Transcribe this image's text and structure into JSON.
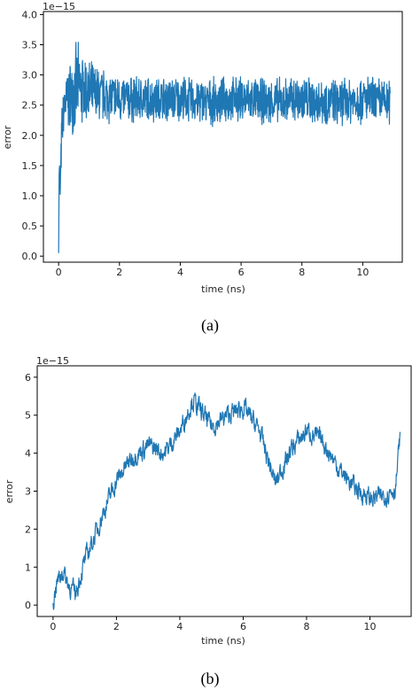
{
  "chart_data": [
    {
      "id": "a",
      "type": "line",
      "caption": "(a)",
      "xlabel": "time (ns)",
      "ylabel": "error",
      "offset_text": "1e−15",
      "xlim": [
        -0.5,
        11.3
      ],
      "ylim": [
        -0.1,
        4.05
      ],
      "xticks": [
        0,
        2,
        4,
        6,
        8,
        10
      ],
      "yticks": [
        0.0,
        0.5,
        1.0,
        1.5,
        2.0,
        2.5,
        3.0,
        3.5,
        4.0
      ],
      "ytick_labels": [
        "0.0",
        "0.5",
        "1.0",
        "1.5",
        "2.0",
        "2.5",
        "3.0",
        "3.5",
        "4.0"
      ],
      "grid": false,
      "color": "#1f77b4",
      "series": [
        {
          "x": [
            0,
            0.02,
            0.05,
            0.08,
            0.1,
            0.15,
            0.2,
            0.3,
            0.4,
            0.5,
            0.6,
            0.8,
            1.0,
            1.5,
            2.0,
            3.0,
            4.0,
            5.0,
            6.0,
            7.0,
            8.0,
            9.0,
            10.0,
            10.9
          ],
          "y": [
            0.05,
            1.6,
            1.0,
            1.6,
            2.0,
            2.3,
            2.5,
            2.6,
            2.65,
            2.75,
            2.8,
            2.75,
            2.7,
            2.65,
            2.6,
            2.6,
            2.6,
            2.55,
            2.6,
            2.55,
            2.6,
            2.55,
            2.6,
            2.55
          ],
          "noise": [
            0,
            0.3,
            0.3,
            0.4,
            0.5,
            0.5,
            0.5,
            0.6,
            0.7,
            0.75,
            0.8,
            0.7,
            0.6,
            0.5,
            0.45,
            0.42,
            0.42,
            0.42,
            0.42,
            0.42,
            0.45,
            0.42,
            0.45,
            0.42
          ]
        }
      ]
    },
    {
      "id": "b",
      "type": "line",
      "caption": "(b)",
      "xlabel": "time (ns)",
      "ylabel": "error",
      "offset_text": "1e−15",
      "xlim": [
        -0.5,
        11.3
      ],
      "ylim": [
        -0.3,
        6.3
      ],
      "xticks": [
        0,
        2,
        4,
        6,
        8,
        10
      ],
      "yticks": [
        0,
        1,
        2,
        3,
        4,
        5,
        6
      ],
      "ytick_labels": [
        "0",
        "1",
        "2",
        "3",
        "4",
        "5",
        "6"
      ],
      "grid": false,
      "color": "#1f77b4",
      "series": [
        {
          "x": [
            0,
            0.1,
            0.3,
            0.5,
            0.7,
            1.0,
            1.3,
            1.6,
            2.0,
            2.5,
            3.0,
            3.5,
            4.0,
            4.4,
            5.0,
            5.5,
            6.0,
            6.5,
            7.0,
            7.5,
            8.0,
            8.5,
            9.0,
            9.5,
            10.0,
            10.5,
            10.8,
            10.95
          ],
          "y": [
            0.1,
            0.6,
            0.9,
            0.5,
            0.3,
            1.2,
            1.8,
            2.5,
            3.3,
            3.9,
            4.2,
            4.0,
            4.6,
            5.4,
            4.7,
            5.0,
            5.2,
            4.6,
            3.2,
            4.1,
            4.6,
            4.3,
            3.6,
            3.1,
            2.8,
            2.9,
            3.1,
            4.6
          ]
        }
      ]
    }
  ],
  "captions": {
    "a": "(a)",
    "b": "(b)"
  }
}
